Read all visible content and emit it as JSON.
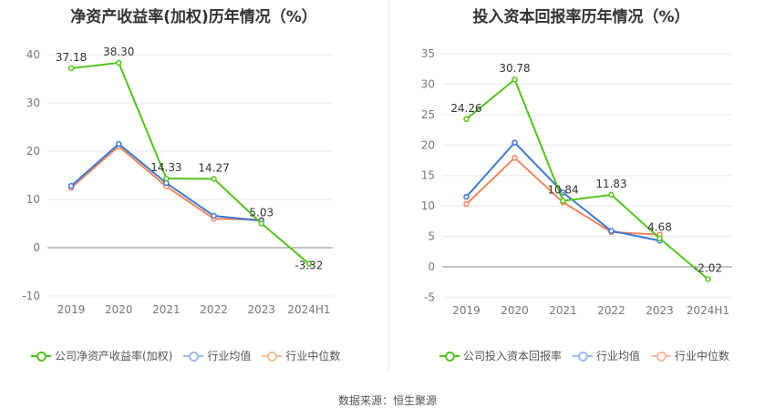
{
  "source_label": "数据来源：恒生聚源",
  "colors": {
    "company": "#52c41a",
    "avg": "#3b78d8",
    "median": "#f4865d"
  },
  "chart_data": [
    {
      "type": "line",
      "title": "净资产收益率(加权)历年情况（%）",
      "categories": [
        "2019",
        "2020",
        "2021",
        "2022",
        "2023",
        "2024H1"
      ],
      "ylim": [
        -10,
        45
      ],
      "yticks": [
        -10,
        0,
        10,
        20,
        30,
        40
      ],
      "series": [
        {
          "name": "公司净资产收益率(加权)",
          "color": "#52c41a",
          "values": [
            37.18,
            38.3,
            14.33,
            14.27,
            5.03,
            -3.32
          ],
          "labels": [
            "37.18",
            "38.30",
            "14.33",
            "14.27",
            "5.03",
            "-3.32"
          ]
        },
        {
          "name": "行业均值",
          "color": "#3b78d8",
          "values": [
            12.8,
            21.5,
            13.4,
            6.6,
            5.6,
            null
          ]
        },
        {
          "name": "行业中位数",
          "color": "#f4865d",
          "values": [
            12.4,
            21.0,
            12.7,
            6.0,
            5.8,
            null
          ]
        }
      ]
    },
    {
      "type": "line",
      "title": "投入资本回报率历年情况（%）",
      "categories": [
        "2019",
        "2020",
        "2021",
        "2022",
        "2023",
        "2024H1"
      ],
      "ylim": [
        -5,
        37
      ],
      "yticks": [
        -5,
        0,
        5,
        10,
        15,
        20,
        25,
        30,
        35
      ],
      "series": [
        {
          "name": "公司投入资本回报率",
          "color": "#52c41a",
          "values": [
            24.26,
            30.78,
            10.84,
            11.83,
            4.68,
            -2.02
          ],
          "labels": [
            "24.26",
            "30.78",
            "10.84",
            "11.83",
            "4.68",
            "-2.02"
          ]
        },
        {
          "name": "行业均值",
          "color": "#3b78d8",
          "values": [
            11.5,
            20.4,
            12.2,
            5.9,
            4.3,
            null
          ]
        },
        {
          "name": "行业中位数",
          "color": "#f4865d",
          "values": [
            10.3,
            17.9,
            10.6,
            5.7,
            5.3,
            null
          ]
        }
      ]
    }
  ]
}
